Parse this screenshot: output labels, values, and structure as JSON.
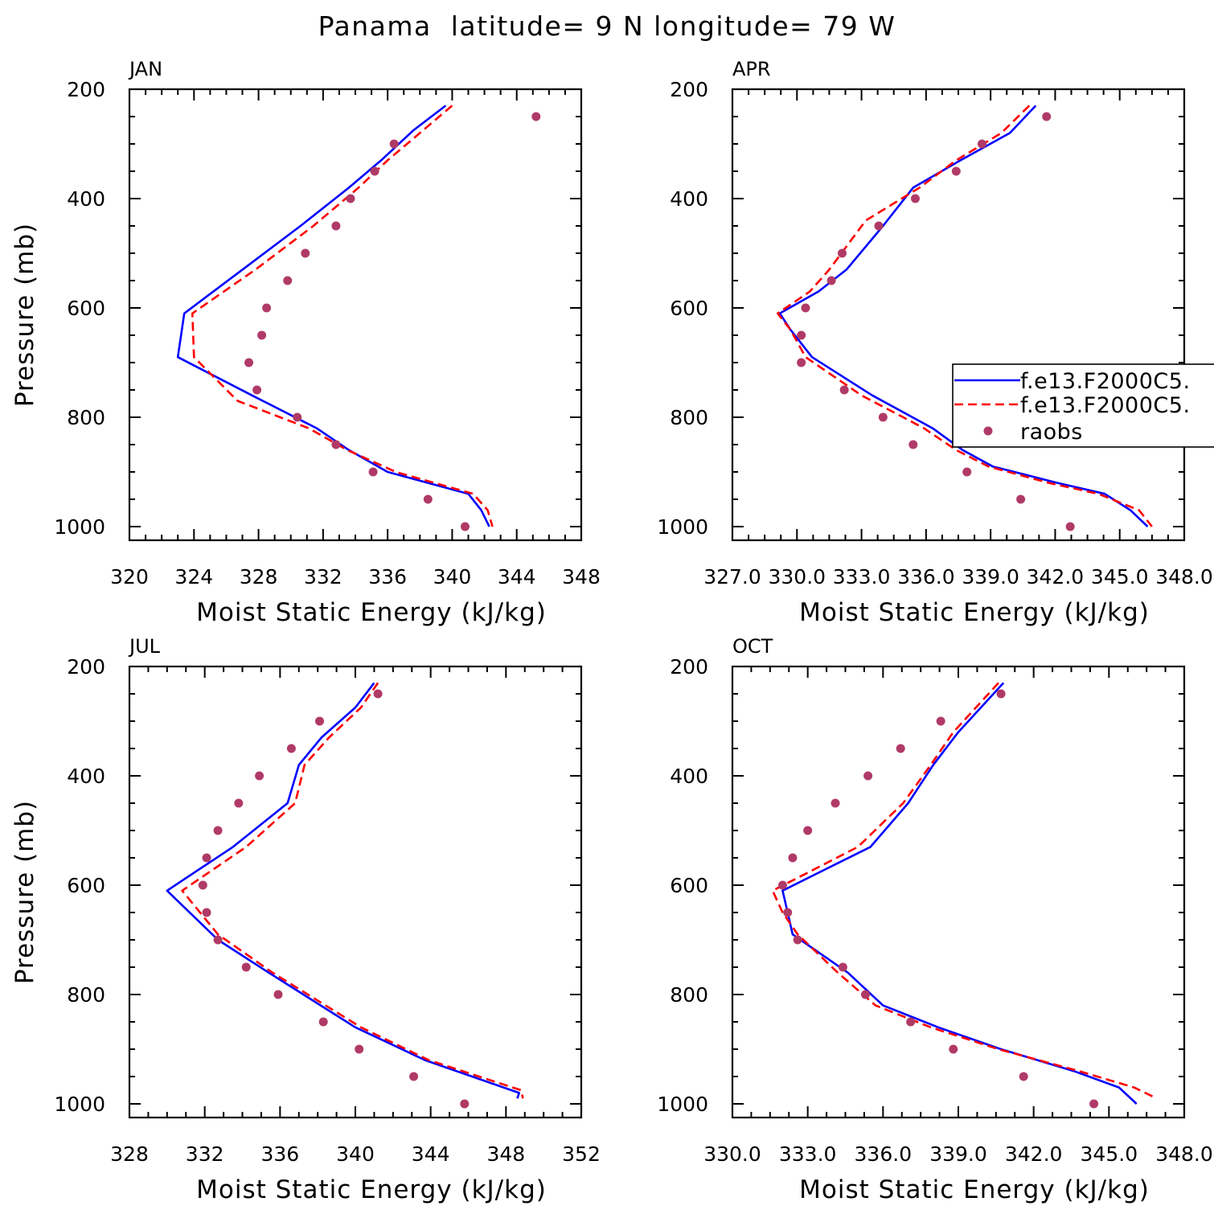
{
  "chart_data": {
    "type": "line",
    "title": "Panama  latitude= 9 N longitude= 79 W",
    "colors": {
      "model1": "#0000ff",
      "model2": "#ff0000",
      "raobs": "#b03a67"
    },
    "legend": {
      "placement": "right",
      "entries": [
        "f.e13.F2000C5.",
        "f.e13.F2000C5.",
        "raobs"
      ]
    },
    "panels": [
      {
        "label": "JAN",
        "xlabel": "Moist Static Energy (kJ/kg)",
        "ylabel": "Pressure (mb)",
        "xlim": [
          320,
          348
        ],
        "ylim": [
          1025,
          200
        ],
        "xticks": [
          320,
          324,
          328,
          332,
          336,
          340,
          344,
          348
        ],
        "xtick_labels": [
          "320",
          "324",
          "328",
          "332",
          "336",
          "340",
          "344",
          "348"
        ],
        "yticks": [
          200,
          400,
          600,
          800,
          1000
        ],
        "ytick_labels": [
          "200",
          "400",
          "600",
          "800",
          "1000"
        ],
        "series": [
          {
            "name": "f.e13.F2000C5.",
            "style": "solid",
            "pressure": [
              230,
              275,
              330,
              380,
              450,
              530,
              610,
              690,
              760,
              820,
              860,
              900,
              940,
              970,
              1000
            ],
            "values": [
              339.6,
              337.6,
              335.6,
              333.6,
              330.6,
              327.0,
              323.4,
              323.0,
              327.6,
              331.6,
              333.6,
              336.0,
              341.0,
              341.8,
              342.3
            ]
          },
          {
            "name": "f.e13.F2000C5.",
            "style": "dashed",
            "pressure": [
              230,
              275,
              330,
              380,
              450,
              530,
              610,
              690,
              770,
              820,
              860,
              900,
              940,
              970,
              1000
            ],
            "values": [
              340.0,
              338.2,
              336.0,
              334.2,
              331.4,
              327.8,
              323.9,
              324.0,
              326.7,
              331.1,
              333.5,
              336.5,
              341.3,
              342.2,
              342.5
            ]
          },
          {
            "name": "raobs",
            "style": "markers",
            "pressure": [
              250,
              300,
              350,
              400,
              450,
              500,
              550,
              600,
              650,
              700,
              750,
              800,
              850,
              900,
              950,
              1000
            ],
            "values": [
              345.2,
              336.4,
              335.2,
              333.7,
              332.8,
              330.9,
              329.8,
              328.5,
              328.2,
              327.4,
              327.9,
              330.4,
              332.8,
              335.1,
              338.5,
              340.8
            ]
          }
        ]
      },
      {
        "label": "APR",
        "xlabel": "Moist Static Energy (kJ/kg)",
        "ylabel": "",
        "xlim": [
          327,
          348
        ],
        "ylim": [
          1025,
          200
        ],
        "xticks": [
          327,
          330,
          333,
          336,
          339,
          342,
          345,
          348
        ],
        "xtick_labels": [
          "327.0",
          "330.0",
          "333.0",
          "336.0",
          "339.0",
          "342.0",
          "345.0",
          "348.0"
        ],
        "yticks": [
          200,
          400,
          600,
          800,
          1000
        ],
        "ytick_labels": [
          "200",
          "400",
          "600",
          "800",
          "1000"
        ],
        "series": [
          {
            "name": "f.e13.F2000C5.",
            "style": "solid",
            "pressure": [
              230,
              280,
              330,
              380,
              450,
              530,
              570,
              610,
              640,
              690,
              760,
              820,
              860,
              890,
              920,
              940,
              970,
              1000
            ],
            "values": [
              341.1,
              339.9,
              337.6,
              335.4,
              334.0,
              332.3,
              331.0,
              329.2,
              329.7,
              330.7,
              333.5,
              336.3,
              337.7,
              339.1,
              342.1,
              344.3,
              345.5,
              346.3
            ]
          },
          {
            "name": "f.e13.F2000C5.",
            "style": "dashed",
            "pressure": [
              230,
              280,
              330,
              380,
              440,
              530,
              570,
              610,
              640,
              690,
              760,
              820,
              860,
              890,
              920,
              940,
              970,
              1000
            ],
            "values": [
              340.8,
              339.5,
              337.4,
              335.7,
              333.2,
              331.5,
              330.6,
              329.1,
              329.7,
              330.4,
              333.0,
              335.9,
              337.4,
              338.9,
              341.7,
              344.0,
              345.9,
              346.5
            ]
          },
          {
            "name": "raobs",
            "style": "markers",
            "pressure": [
              250,
              300,
              350,
              400,
              450,
              500,
              550,
              600,
              650,
              700,
              750,
              800,
              850,
              900,
              950,
              1000
            ],
            "values": [
              341.6,
              338.6,
              337.4,
              335.5,
              333.8,
              332.1,
              331.6,
              330.4,
              330.2,
              330.2,
              332.2,
              334.0,
              335.4,
              337.9,
              340.4,
              342.7
            ]
          }
        ]
      },
      {
        "label": "JUL",
        "xlabel": "Moist Static Energy (kJ/kg)",
        "ylabel": "Pressure (mb)",
        "xlim": [
          328,
          352
        ],
        "ylim": [
          1025,
          200
        ],
        "xticks": [
          328,
          332,
          336,
          340,
          344,
          348,
          352
        ],
        "xtick_labels": [
          "328",
          "332",
          "336",
          "340",
          "344",
          "348",
          "352"
        ],
        "yticks": [
          200,
          400,
          600,
          800,
          1000
        ],
        "ytick_labels": [
          "200",
          "400",
          "600",
          "800",
          "1000"
        ],
        "series": [
          {
            "name": "f.e13.F2000C5.",
            "style": "solid",
            "pressure": [
              230,
              275,
              330,
              380,
              450,
              530,
              610,
              700,
              760,
              860,
              920,
              980,
              990
            ],
            "values": [
              341.0,
              340.0,
              338.2,
              337.0,
              336.4,
              333.5,
              330.0,
              332.7,
              335.4,
              340.0,
              343.7,
              348.7,
              348.6
            ]
          },
          {
            "name": "f.e13.F2000C5.",
            "style": "dashed",
            "pressure": [
              230,
              275,
              330,
              380,
              450,
              530,
              610,
              690,
              760,
              860,
              920,
              975,
              990
            ],
            "values": [
              341.2,
              340.3,
              338.6,
              337.3,
              336.8,
              334.2,
              330.8,
              332.7,
              335.6,
              340.3,
              343.9,
              348.8,
              348.9
            ]
          },
          {
            "name": "raobs",
            "style": "markers",
            "pressure": [
              250,
              300,
              350,
              400,
              450,
              500,
              550,
              600,
              650,
              700,
              750,
              800,
              850,
              900,
              950,
              1000
            ],
            "values": [
              341.2,
              338.1,
              336.6,
              334.9,
              333.8,
              332.7,
              332.1,
              331.9,
              332.1,
              332.7,
              334.2,
              335.9,
              338.3,
              340.2,
              343.1,
              345.8
            ]
          }
        ]
      },
      {
        "label": "OCT",
        "xlabel": "Moist Static Energy (kJ/kg)",
        "ylabel": "",
        "xlim": [
          330,
          348
        ],
        "ylim": [
          1025,
          200
        ],
        "xticks": [
          330,
          333,
          336,
          339,
          342,
          345,
          348
        ],
        "xtick_labels": [
          "330.0",
          "333.0",
          "336.0",
          "339.0",
          "342.0",
          "345.0",
          "348.0"
        ],
        "yticks": [
          200,
          400,
          600,
          800,
          1000
        ],
        "ytick_labels": [
          "200",
          "400",
          "600",
          "800",
          "1000"
        ],
        "series": [
          {
            "name": "f.e13.F2000C5.",
            "style": "solid",
            "pressure": [
              230,
              320,
              380,
              450,
              530,
              610,
              650,
              690,
              760,
              820,
              860,
              900,
              940,
              970,
              1000
            ],
            "values": [
              340.8,
              339.0,
              338.0,
              337.0,
              335.5,
              332.0,
              332.2,
              332.4,
              334.6,
              336.0,
              338.2,
              340.7,
              343.6,
              345.4,
              346.1
            ]
          },
          {
            "name": "f.e13.F2000C5.",
            "style": "dashed",
            "pressure": [
              230,
              320,
              380,
              450,
              530,
              610,
              650,
              690,
              760,
              820,
              860,
              900,
              940,
              970,
              990
            ],
            "values": [
              340.6,
              338.8,
              337.9,
              336.8,
              335.0,
              331.6,
              332.0,
              332.6,
              334.2,
              335.7,
              337.9,
              340.6,
              343.8,
              346.0,
              346.9
            ]
          },
          {
            "name": "raobs",
            "style": "markers",
            "pressure": [
              250,
              300,
              350,
              400,
              450,
              500,
              550,
              600,
              650,
              700,
              750,
              800,
              850,
              900,
              950,
              1000
            ],
            "values": [
              340.7,
              338.3,
              336.7,
              335.4,
              334.1,
              333.0,
              332.4,
              332.0,
              332.2,
              332.6,
              334.4,
              335.3,
              337.1,
              338.8,
              341.6,
              344.4
            ]
          }
        ]
      }
    ]
  }
}
